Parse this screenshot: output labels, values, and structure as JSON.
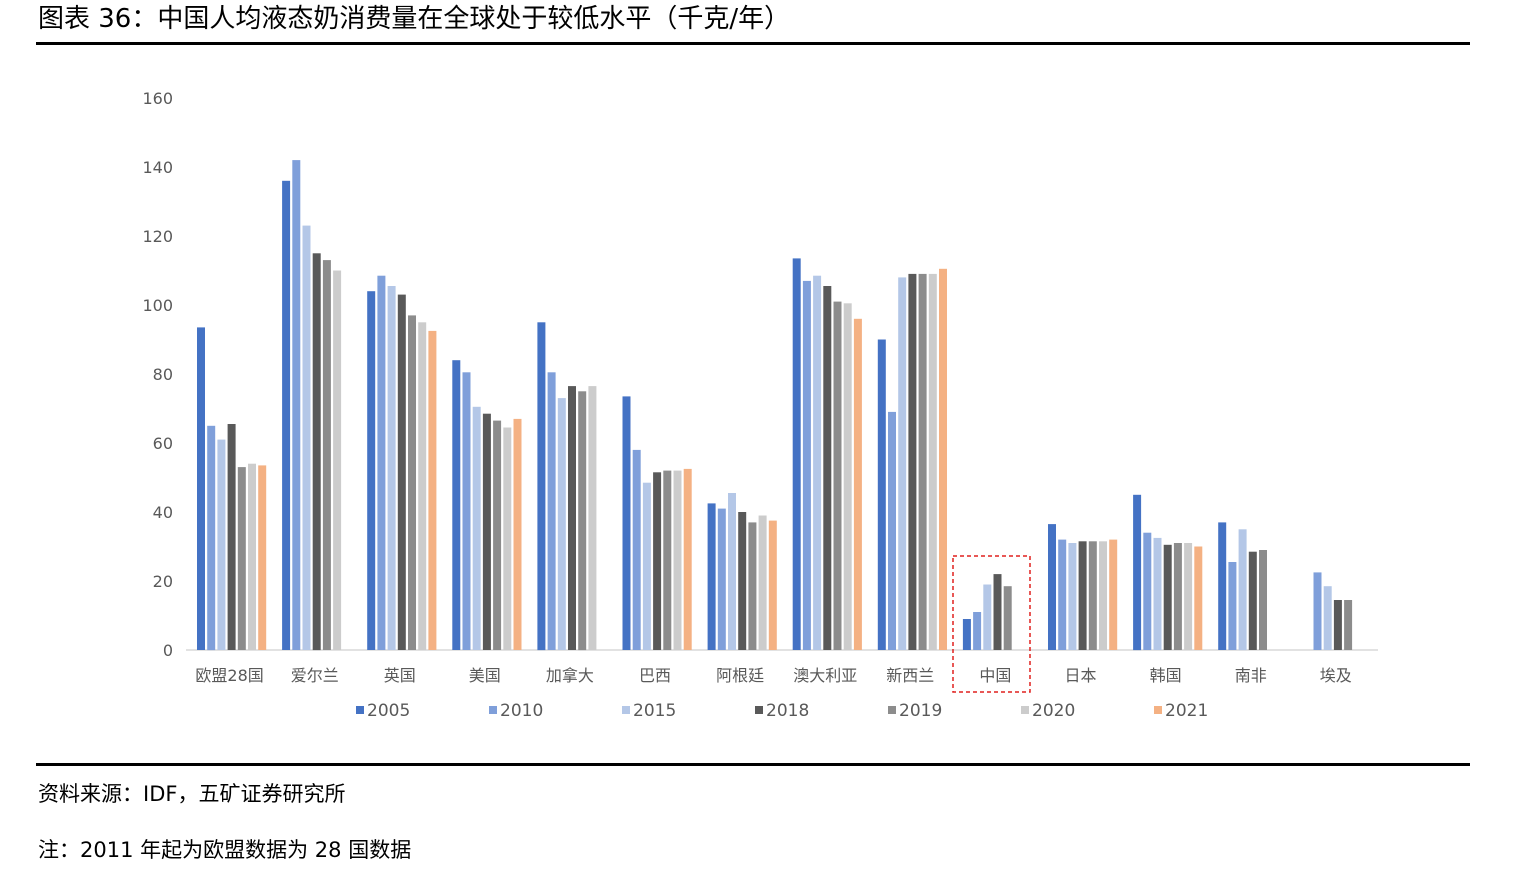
{
  "header": {
    "title": "图表 36：中国人均液态奶消费量在全球处于较低水平（千克/年）"
  },
  "footer": {
    "source": "资料来源：IDF，五矿证券研究所",
    "note": "注：2011 年起为欧盟数据为 28 国数据"
  },
  "chart_data": {
    "type": "bar",
    "title": "",
    "xlabel": "",
    "ylabel": "",
    "ylim": [
      0,
      160
    ],
    "yticks": [
      0,
      20,
      40,
      60,
      80,
      100,
      120,
      140,
      160
    ],
    "grid": false,
    "legend_position": "bottom",
    "highlighted_category": "中国",
    "categories": [
      "欧盟28国",
      "爱尔兰",
      "英国",
      "美国",
      "加拿大",
      "巴西",
      "阿根廷",
      "澳大利亚",
      "新西兰",
      "中国",
      "日本",
      "韩国",
      "南非",
      "埃及"
    ],
    "series": [
      {
        "name": "2005",
        "color": "#4472C4",
        "values": [
          93.5,
          136,
          104,
          84,
          95,
          73.5,
          42.5,
          113.5,
          90,
          9,
          36.5,
          45,
          37,
          null
        ]
      },
      {
        "name": "2010",
        "color": "#7F9FDA",
        "values": [
          65,
          142,
          108.5,
          80.5,
          80.5,
          58,
          41,
          107,
          69,
          11,
          32,
          34,
          25.5,
          22.5
        ]
      },
      {
        "name": "2015",
        "color": "#B4C7E7",
        "values": [
          61,
          123,
          105.5,
          70.5,
          73,
          48.5,
          45.5,
          108.5,
          108,
          19,
          31,
          32.5,
          35,
          18.5
        ]
      },
      {
        "name": "2018",
        "color": "#595959",
        "values": [
          65.5,
          115,
          103,
          68.5,
          76.5,
          51.5,
          40,
          105.5,
          109,
          22,
          31.5,
          30.5,
          28.5,
          14.5
        ]
      },
      {
        "name": "2019",
        "color": "#8C8C8C",
        "values": [
          53,
          113,
          97,
          66.5,
          75,
          52,
          37,
          101,
          109,
          18.5,
          31.5,
          31,
          29,
          14.5
        ]
      },
      {
        "name": "2020",
        "color": "#CCCCCC",
        "values": [
          54,
          110,
          95,
          64.5,
          76.5,
          52,
          39,
          100.5,
          109,
          null,
          31.5,
          31,
          null,
          null
        ]
      },
      {
        "name": "2021",
        "color": "#F4B183",
        "values": [
          53.5,
          null,
          92.5,
          67,
          null,
          52.5,
          37.5,
          96,
          110.5,
          null,
          32,
          30,
          null,
          null
        ]
      }
    ]
  }
}
